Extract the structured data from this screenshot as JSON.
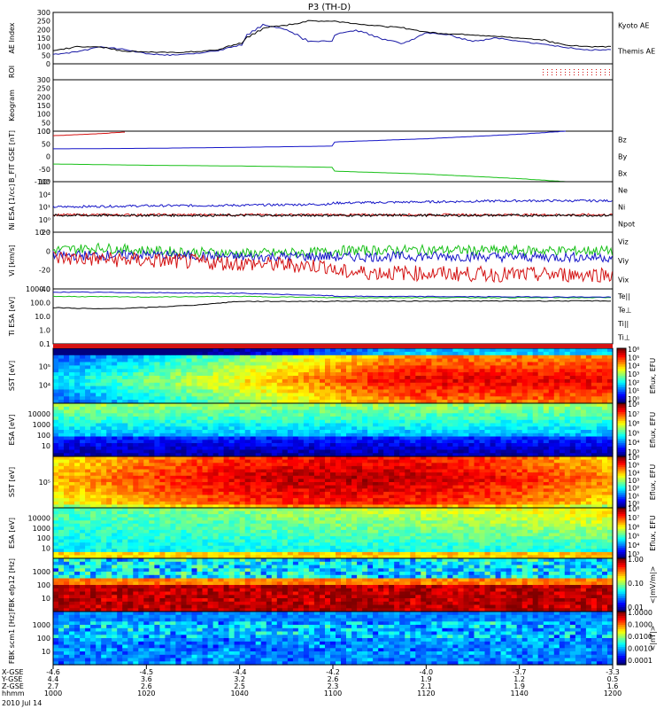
{
  "title": "P3 (TH-D)",
  "colors": {
    "kyoto": "#1a1aa6",
    "themis": "#000000",
    "red": "#d41414",
    "green": "#18c018",
    "blue": "#1515c8"
  },
  "chart_data": {
    "type": "line",
    "x_axis": {
      "ticks_hhmm": [
        "1000",
        "1020",
        "1040",
        "1100",
        "1120",
        "1140",
        "1200"
      ],
      "date_label": "2010 Jul 14",
      "rows": [
        {
          "label": "X-GSE",
          "values": [
            "-4.6",
            "-4.5",
            "-4.4",
            "-4.2",
            "-4.0",
            "-3.7",
            "-3.3"
          ]
        },
        {
          "label": "Y-GSE",
          "values": [
            "4.4",
            "3.6",
            "3.2",
            "2.6",
            "1.9",
            "1.2",
            "0.5"
          ]
        },
        {
          "label": "Z-GSE",
          "values": [
            "2.7",
            "2.6",
            "2.5",
            "2.3",
            "2.1",
            "1.9",
            "1.6"
          ]
        },
        {
          "label": "hhmm",
          "values": [
            "1000",
            "1020",
            "1040",
            "1100",
            "1120",
            "1140",
            "1200"
          ]
        }
      ]
    },
    "panels": [
      {
        "id": "ae",
        "type": "line",
        "ylabel": "AE Index",
        "yticks": [
          "0",
          "50",
          "100",
          "150",
          "200",
          "250",
          "300"
        ],
        "ylim": [
          0,
          300
        ],
        "legend": [
          "Kyoto AE",
          "Themis AE"
        ],
        "series": [
          {
            "name": "Kyoto AE",
            "x": [
              1000,
              1005,
              1010,
              1015,
              1020,
              1025,
              1030,
              1035,
              1040,
              1042,
              1045,
              1050,
              1055,
              1100,
              1105,
              1110,
              1115,
              1120,
              1125,
              1130,
              1135,
              1140,
              1145,
              1150,
              1155,
              1200
            ],
            "y": [
              55,
              70,
              100,
              85,
              60,
              50,
              60,
              75,
              110,
              170,
              230,
              200,
              130,
              165,
              200,
              150,
              120,
              180,
              170,
              130,
              150,
              130,
              115,
              95,
              80,
              120
            ]
          },
          {
            "name": "Themis AE",
            "x": [
              1000,
              1005,
              1010,
              1015,
              1020,
              1025,
              1030,
              1035,
              1040,
              1045,
              1050,
              1055,
              1100,
              1105,
              1110,
              1115,
              1120,
              1125,
              1130,
              1135,
              1140,
              1145,
              1150,
              1155,
              1200
            ],
            "y": [
              75,
              100,
              100,
              75,
              70,
              65,
              70,
              80,
              120,
              210,
              225,
              250,
              250,
              235,
              220,
              210,
              185,
              175,
              170,
              160,
              150,
              140,
              110,
              100,
              95
            ]
          }
        ]
      },
      {
        "id": "roi",
        "type": "marker",
        "ylabel": "ROI",
        "markers_from": 1145
      },
      {
        "id": "keogram",
        "type": "empty",
        "ylabel": "Keogram",
        "yticks": [
          "0",
          "50",
          "100",
          "150",
          "200",
          "250",
          "300"
        ],
        "ylim": [
          0,
          300
        ]
      },
      {
        "id": "bfit",
        "type": "line",
        "ylabel": "B_FIT GSE [nT]",
        "yticks": [
          "-100",
          "-50",
          "0",
          "50",
          "100"
        ],
        "ylim": [
          -100,
          100
        ],
        "legend": [
          "Bz",
          "By",
          "Bx"
        ],
        "series": [
          {
            "name": "Bz",
            "x": [
              1000,
              1010,
              1015
            ],
            "y": [
              82,
              90,
              96
            ]
          },
          {
            "name": "By",
            "x": [
              1000,
              1020,
              1040,
              1060,
              1080,
              1100,
              1120,
              1140,
              1150
            ],
            "y": [
              30,
              32,
              36,
              41,
              48,
              57,
              70,
              88,
              100
            ]
          },
          {
            "name": "Bx",
            "x": [
              1000,
              1020,
              1040,
              1060,
              1080,
              1100,
              1120,
              1140,
              1150
            ],
            "y": [
              -30,
              -35,
              -38,
              -43,
              -50,
              -58,
              -70,
              -88,
              -100
            ]
          }
        ]
      },
      {
        "id": "ni",
        "type": "line",
        "ylabel": "Ni ESA [1/cc]",
        "scale": "log",
        "yticks": [
          "10⁻³",
          "10⁰",
          "10¹",
          "10⁴",
          "10⁶"
        ],
        "ylim": [
          -3,
          6
        ],
        "legend": [
          "Ne",
          "Ni",
          "Npot"
        ],
        "series": [
          {
            "name": "Ni",
            "x": [
              1000,
              1020,
              1040,
              1060,
              1080,
              1100,
              1120,
              1140,
              1200
            ],
            "y": [
              1.5,
              1.7,
              1.8,
              2.0,
              2.1,
              2.2,
              2.4,
              2.6,
              2.6
            ]
          },
          {
            "name": "Ne",
            "x": [
              1000,
              1200
            ],
            "y": [
              0.1,
              0.1
            ]
          },
          {
            "name": "Npot",
            "x": [
              1000,
              1200
            ],
            "y": [
              0.0,
              0.0
            ]
          }
        ]
      },
      {
        "id": "vi",
        "type": "line",
        "ylabel": "Vi [km/s]",
        "yticks": [
          "-40",
          "-20",
          "0",
          "20"
        ],
        "ylim": [
          -50,
          30
        ],
        "legend": [
          "Viz",
          "Viy",
          "Vix"
        ],
        "series": [
          {
            "name": "Viy",
            "x": [
              1000,
              1010,
              1020,
              1040,
              1060,
              1080,
              1100,
              1120,
              1140,
              1200
            ],
            "y": [
              5,
              8,
              4,
              0,
              2,
              3,
              4,
              5,
              4,
              4
            ]
          },
          {
            "name": "Vix",
            "x": [
              1000,
              1020,
              1040,
              1060,
              1080,
              1100,
              1120,
              1140,
              1200
            ],
            "y": [
              -3,
              -2,
              -5,
              -4,
              -3,
              -5,
              -4,
              -5,
              -6
            ]
          },
          {
            "name": "Viz",
            "x": [
              1000,
              1020,
              1040,
              1060,
              1080,
              1100,
              1120,
              1140,
              1200
            ],
            "y": [
              -6,
              -10,
              -14,
              -18,
              -22,
              -26,
              -28,
              -30,
              -28
            ]
          }
        ]
      },
      {
        "id": "ti",
        "type": "line",
        "ylabel": "Ti ESA [eV]",
        "scale": "log",
        "yticks": [
          "0.1",
          "1.0",
          "10.0",
          "100.0",
          "1000.0"
        ],
        "ylim": [
          -1,
          3.4
        ],
        "legend": [
          "Te||",
          "Te⊥",
          "Ti||",
          "Ti⊥"
        ],
        "series": [
          {
            "name": "Te||",
            "x": [
              1000,
              1010,
              1020,
              1030,
              1040,
              1200
            ],
            "y": [
              1.9,
              1.8,
              1.9,
              2.1,
              2.4,
              2.45
            ]
          },
          {
            "name": "Ti||",
            "x": [
              1000,
              1020,
              1040,
              1060,
              1200
            ],
            "y": [
              2.8,
              2.75,
              2.8,
              2.7,
              2.7
            ]
          },
          {
            "name": "Ti⊥",
            "x": [
              1000,
              1020,
              1040,
              1060,
              1200
            ],
            "y": [
              3.15,
              3.1,
              3.05,
              2.85,
              2.7
            ]
          }
        ]
      },
      {
        "id": "sst1",
        "type": "heatmap",
        "ylabel": "SST [eV]",
        "yticks": [
          "10⁵",
          "10⁴"
        ],
        "cbar_label": "Eflux, EFU",
        "cbar_ticks": [
          "10⁶",
          "10⁵",
          "10⁴",
          "10³",
          "10²",
          "10¹",
          "10⁰"
        ]
      },
      {
        "id": "esa1",
        "type": "heatmap",
        "ylabel": "ESA [eV]",
        "yticks": [
          "10000",
          "1000",
          "100",
          "10"
        ],
        "cbar_label": "Eflux, EFU",
        "cbar_ticks": [
          "10⁸",
          "10⁷",
          "10⁶",
          "10⁵",
          "10⁴",
          "10³"
        ]
      },
      {
        "id": "sst2",
        "type": "heatmap",
        "ylabel": "SST [eV]",
        "yticks": [
          "10⁵"
        ],
        "cbar_label": "Eflux, EFU",
        "cbar_ticks": [
          "10⁶",
          "10⁵",
          "10⁴",
          "10³",
          "10²",
          "10¹",
          "10⁰"
        ]
      },
      {
        "id": "esa2",
        "type": "heatmap",
        "ylabel": "ESA [eV]",
        "yticks": [
          "10000",
          "1000",
          "100",
          "10"
        ],
        "cbar_label": "Eflux, EFU",
        "cbar_ticks": [
          "10⁸",
          "10⁷",
          "10⁶",
          "10⁵",
          "10⁴",
          "10³"
        ]
      },
      {
        "id": "fbk1",
        "type": "heatmap",
        "ylabel": "FBK efp12 [Hz]",
        "yticks": [
          "1000",
          "100",
          "10"
        ],
        "cbar_label": "<|mV/m|>",
        "cbar_ticks": [
          "1.00",
          "0.10",
          "0.01"
        ]
      },
      {
        "id": "fbk2",
        "type": "heatmap",
        "ylabel": "FBK scm1 [Hz]",
        "yticks": [
          "1000",
          "100",
          "10"
        ],
        "cbar_label": "<|nT|>",
        "cbar_ticks": [
          "1.0000",
          "0.1000",
          "0.0100",
          "0.0010",
          "0.0001"
        ]
      }
    ]
  }
}
